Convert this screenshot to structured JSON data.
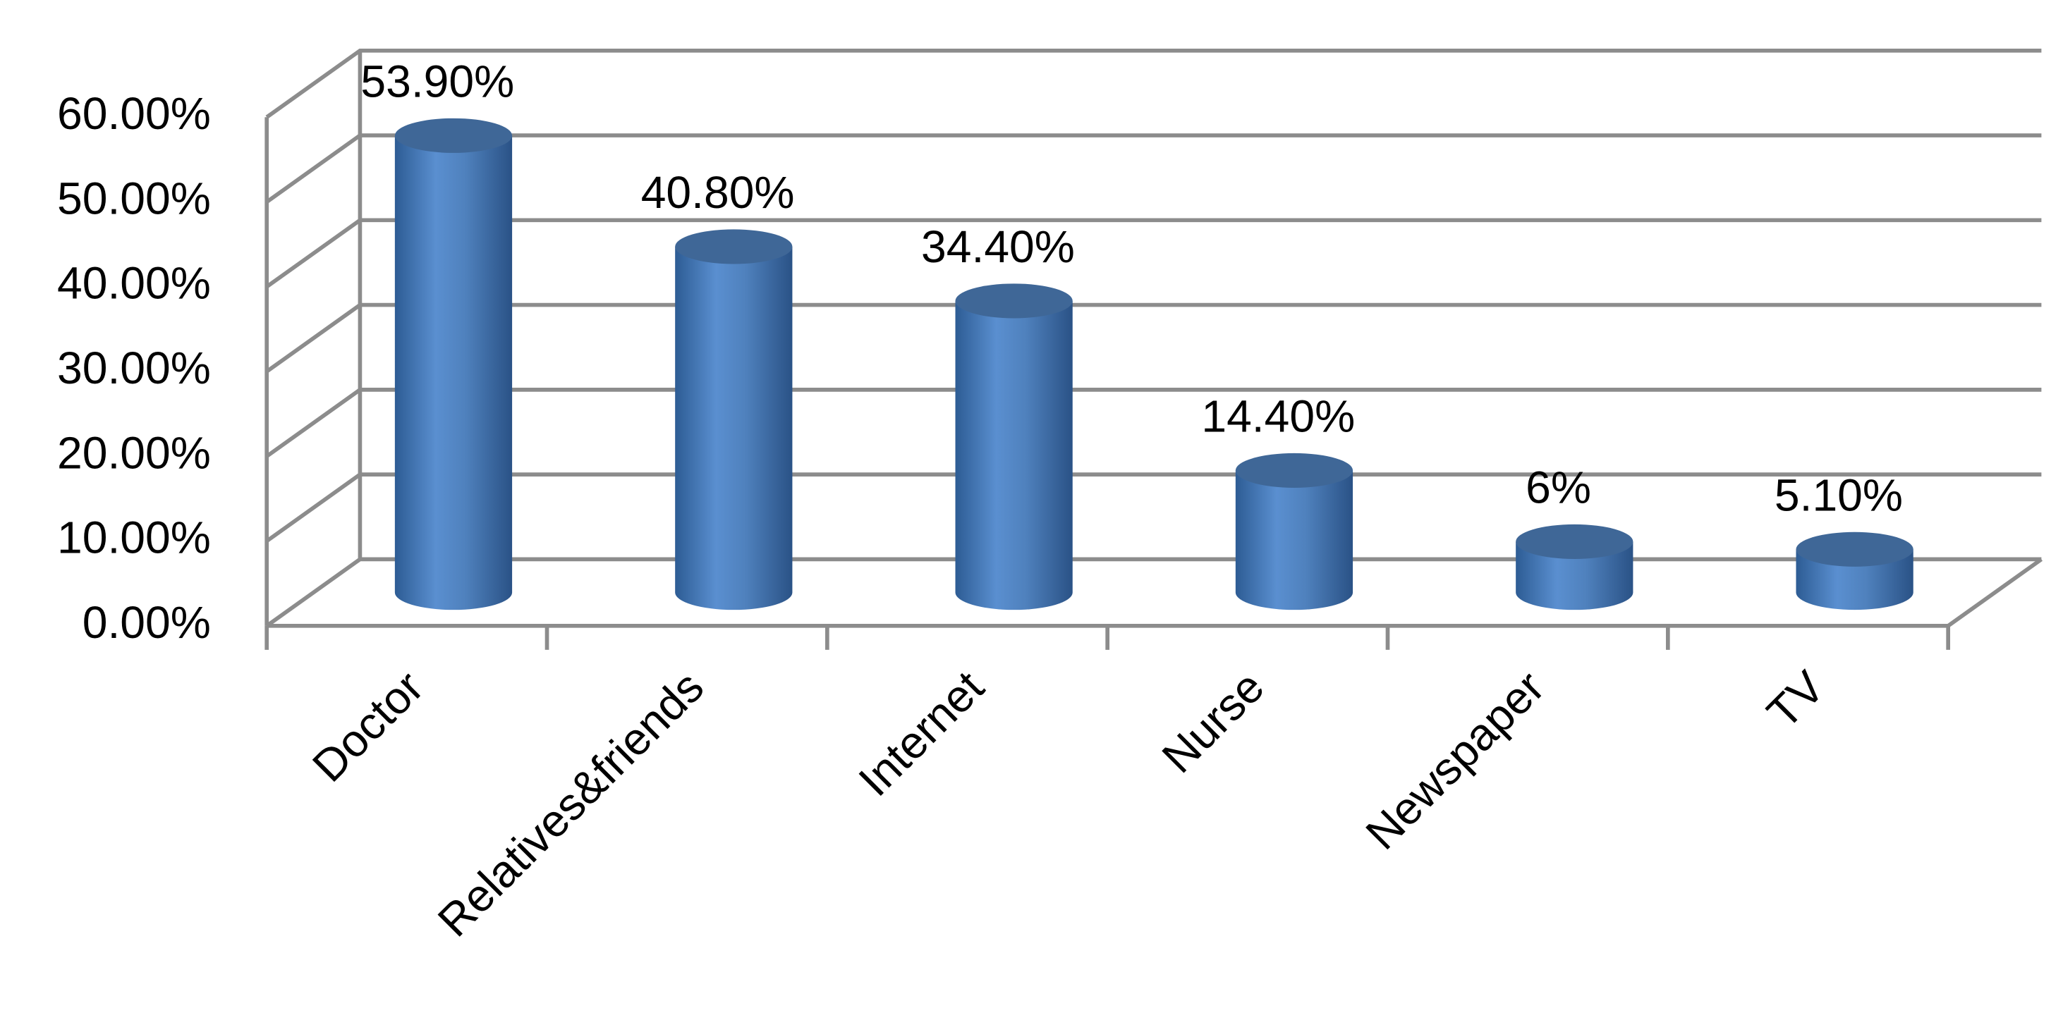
{
  "chart_data": {
    "type": "bar",
    "categories": [
      "Doctor",
      "Relatives&friends",
      "Internet",
      "Nurse",
      "Newspaper",
      "TV"
    ],
    "values": [
      53.9,
      40.8,
      34.4,
      14.4,
      6,
      5.1
    ],
    "value_labels": [
      "53.90%",
      "40.80%",
      "34.40%",
      "14.40%",
      "6%",
      "5.10%"
    ],
    "color": "#4f81bd",
    "ylim": [
      0,
      60
    ],
    "yticks": [
      {
        "value": 0,
        "label": "0.00%"
      },
      {
        "value": 10,
        "label": "10.00%"
      },
      {
        "value": 20,
        "label": "20.00%"
      },
      {
        "value": 30,
        "label": "30.00%"
      },
      {
        "value": 40,
        "label": "40.00%"
      },
      {
        "value": 50,
        "label": "50.00%"
      },
      {
        "value": 60,
        "label": "60.00%"
      }
    ],
    "grid": true
  }
}
